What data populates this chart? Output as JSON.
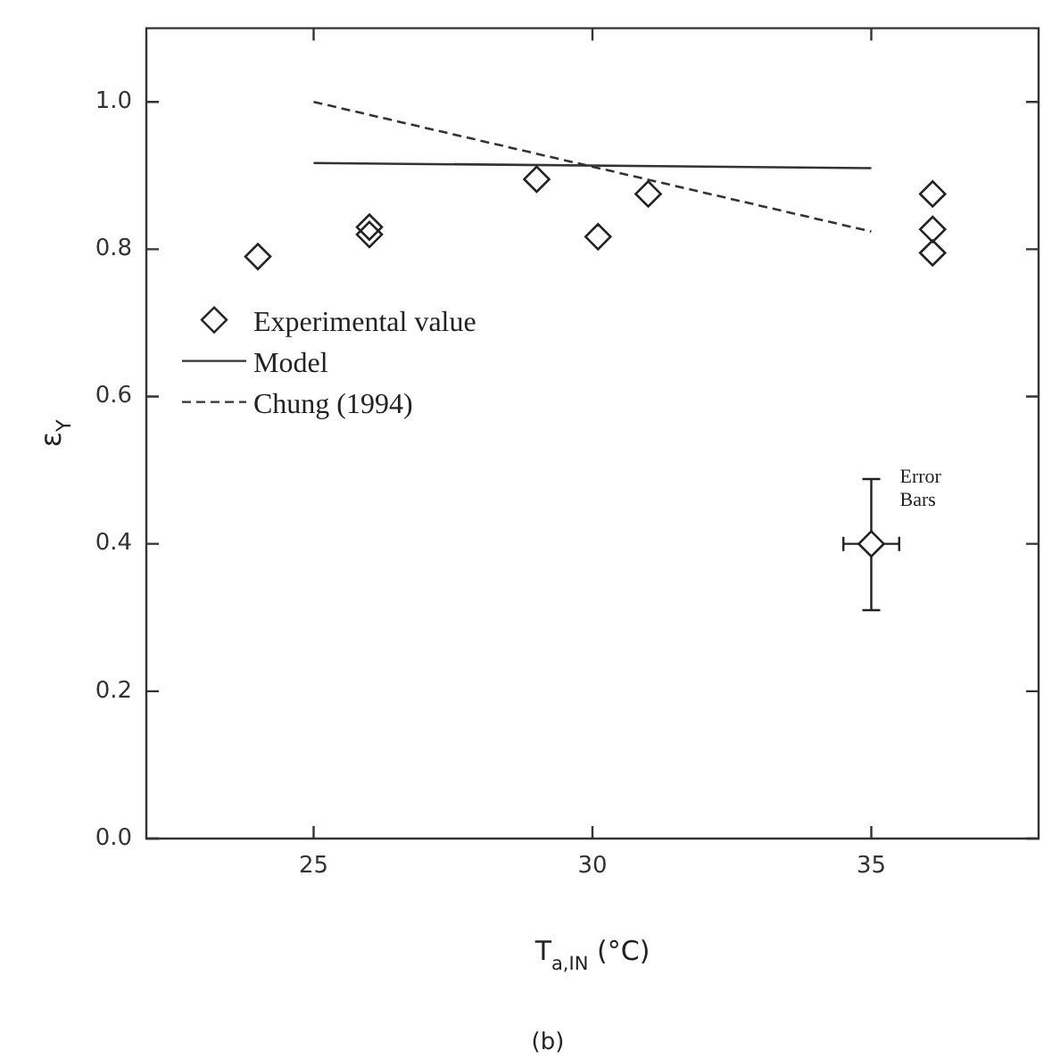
{
  "chart_data": {
    "type": "scatter",
    "xlabel": "T$_{a,IN}$ (°C)",
    "ylabel": "ε$_{Y}$",
    "xlim": [
      22,
      38
    ],
    "xticks": [
      25,
      30,
      35
    ],
    "ylim": [
      0,
      1.1
    ],
    "yticks": [
      {
        "value": 0,
        "label": "0.0"
      },
      {
        "value": 0.2,
        "label": "0.2"
      },
      {
        "value": 0.4,
        "label": "0.4"
      },
      {
        "value": 0.6,
        "label": "0.6"
      },
      {
        "value": 0.8,
        "label": "0.8"
      },
      {
        "value": 1,
        "label": "1.0"
      }
    ],
    "grid": false,
    "legend": "left",
    "series": [
      {
        "name": "Experimental value",
        "marker": "diamond",
        "color": "#222222",
        "x": [
          24,
          26,
          26,
          29,
          30.1,
          31,
          36.1,
          36.1,
          36.1
        ],
        "values": [
          0.79,
          0.83,
          0.82,
          0.895,
          0.817,
          0.875,
          0.875,
          0.827,
          0.795
        ]
      },
      {
        "name": "Model",
        "type": "line",
        "marker": "none",
        "line_style": "solid",
        "color": "#333333",
        "x": [
          25,
          35
        ],
        "values": [
          0.917,
          0.91
        ]
      },
      {
        "name": "Chung (1994)",
        "type": "line",
        "marker": "none",
        "line_style": "dashed",
        "color": "#333333",
        "x": [
          25,
          35
        ],
        "values": [
          1.0,
          0.824
        ]
      },
      {
        "marker": "diamond",
        "color": "#222222",
        "x": [
          35
        ],
        "values": [
          0.4
        ],
        "errors": [
          [
            0.31,
            0.488
          ]
        ],
        "xerrors": [
          [
            34.5,
            35.5
          ]
        ]
      }
    ],
    "annotations": [
      "Error Bars",
      "(b)"
    ]
  }
}
